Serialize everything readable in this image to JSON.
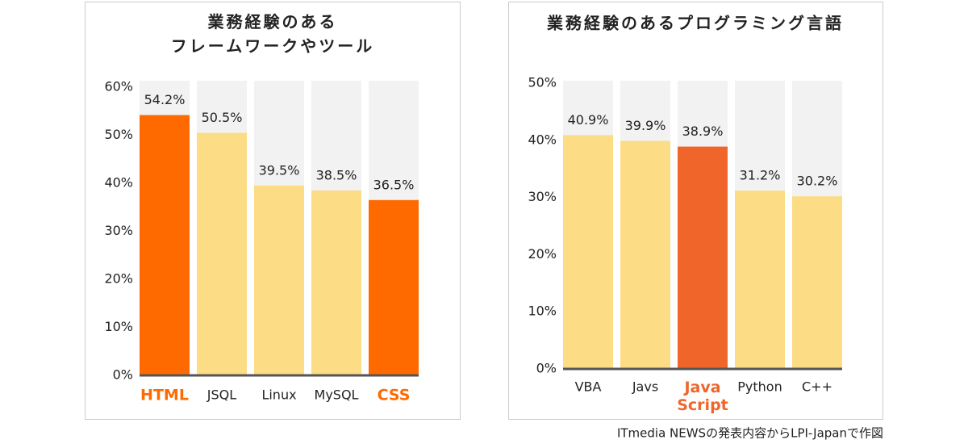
{
  "chart_data": [
    {
      "type": "bar",
      "title": "業務経験のある\nフレームワークやツール",
      "categories": [
        "HTML",
        "JSQL",
        "Linux",
        "MySQL",
        "CSS"
      ],
      "values": [
        54.2,
        50.5,
        39.5,
        38.5,
        36.5
      ],
      "value_labels": [
        "54.2%",
        "50.5%",
        "39.5%",
        "38.5%",
        "36.5%"
      ],
      "colors": [
        "#ff6a00",
        "#fcdc84",
        "#fcdc84",
        "#fcdc84",
        "#ff6a00"
      ],
      "highlighted": [
        true,
        false,
        false,
        false,
        true
      ],
      "ylim": [
        0,
        60
      ],
      "yticks": [
        {
          "value": 0,
          "label": "0%"
        },
        {
          "value": 10,
          "label": "10%"
        },
        {
          "value": 20,
          "label": "20%"
        },
        {
          "value": 30,
          "label": "30%"
        },
        {
          "value": 40,
          "label": "40%"
        },
        {
          "value": 50,
          "label": "50%"
        },
        {
          "value": 60,
          "label": "60%"
        }
      ]
    },
    {
      "type": "bar",
      "title": "業務経験のあるプログラミング言語",
      "categories": [
        "VBA",
        "Javs",
        "Java\nScript",
        "Python",
        "C++"
      ],
      "values": [
        40.9,
        39.9,
        38.9,
        31.2,
        30.2
      ],
      "value_labels": [
        "40.9%",
        "39.9%",
        "38.9%",
        "31.2%",
        "30.2%"
      ],
      "colors": [
        "#fcdc84",
        "#fcdc84",
        "#f0652a",
        "#fcdc84",
        "#fcdc84"
      ],
      "highlighted": [
        false,
        false,
        true,
        false,
        false
      ],
      "ylim": [
        0,
        50
      ],
      "yticks": [
        {
          "value": 0,
          "label": "0%"
        },
        {
          "value": 10,
          "label": "10%"
        },
        {
          "value": 20,
          "label": "20%"
        },
        {
          "value": 30,
          "label": "30%"
        },
        {
          "value": 40,
          "label": "40%"
        },
        {
          "value": 50,
          "label": "50%"
        }
      ]
    }
  ],
  "source": "ITmedia NEWSの発表内容からLPI-Japanで作図"
}
